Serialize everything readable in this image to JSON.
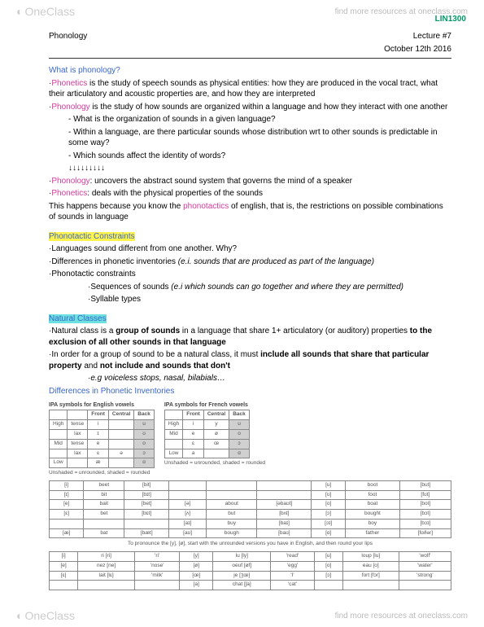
{
  "watermark": {
    "logo": "OneClass",
    "tagline": "find more resources at oneclass.com"
  },
  "header": {
    "course": "LIN1300",
    "left": "Phonology",
    "right1": "Lecture #7",
    "right2": "October 12th 2016"
  },
  "s1": {
    "title": "What is phonology?",
    "p1a": "Phonetics",
    "p1b": " is the study of speech sounds as physical entities: how they are produced in the vocal tract, what their articulatory and acoustic properties are, and how they are interpreted",
    "p2a": "Phonology",
    "p2b": " is the study of how sounds are organized within a language and how they interact with one another",
    "b1": "What is the organization of sounds in a given language?",
    "b2": "Within a language, are there particular sounds whose distribution wrt to other sounds is predictable in some way?",
    "b3": "Which sounds affect the identity of words?",
    "arrows": "↓↓↓↓↓↓↓↓↓",
    "p3a": "Phonology",
    "p3b": ": uncovers the abstract sound system that governs the mind of a speaker",
    "p4a": "Phonetics",
    "p4b": ": deals with the physical properties of the sounds",
    "p5a": "This happens because you know the ",
    "p5b": "phonotactics",
    "p5c": " of english, that is, the restrictions on possible combinations of sounds in language"
  },
  "s2": {
    "title": "Phonotactic Constraints",
    "p1": "·Languages sound different from one another. Why?",
    "p2a": "·Differences in phonetic inventories ",
    "p2b": "(e.i. sounds that are produced as part of the language)",
    "p3": "·Phonotactic constraints",
    "p4a": "·Sequences of sounds ",
    "p4b": "(e.i which sounds can go together and where they are permitted)",
    "p5": "·Syllable types"
  },
  "s3": {
    "title": "Natural Classes",
    "p1a": "·Natural class is a ",
    "p1b": "group of sounds",
    "p1c": " in a language that share 1+ articulatory (or auditory) properties ",
    "p1d": "to the exclusion of all other sounds in that language",
    "p2a": "·In order for a group of sound to be a natural class, it must ",
    "p2b": "include all sounds that share that particular property",
    "p2c": " and ",
    "p2d": "not include and sounds that don't",
    "p3": "·e.g voiceless stops, nasal, bilabials…"
  },
  "s4": {
    "title": "Differences in Phonetic Inventories",
    "tbl1_title": "IPA symbols for English vowels",
    "tbl2_title": "IPA symbols for French vowels",
    "caption": "Unshaded = unrounded, shaded = rounded",
    "eng_cols": [
      "",
      "",
      "Front",
      "Central",
      "Back"
    ],
    "eng_rows": [
      [
        "High",
        "tense",
        "i",
        "",
        "u"
      ],
      [
        "",
        "lax",
        "ɪ",
        "",
        "ʊ"
      ],
      [
        "Mid",
        "tense",
        "e",
        "",
        "o"
      ],
      [
        "",
        "lax",
        "ɛ",
        "ə",
        "ɔ"
      ],
      [
        "Low",
        "",
        "æ",
        "",
        "ɑ"
      ]
    ],
    "fr_cols": [
      "",
      "Front",
      "Central",
      "Back"
    ],
    "fr_rows": [
      [
        "High",
        "i",
        "y",
        "u"
      ],
      [
        "Mid",
        "e",
        "ø",
        "o"
      ],
      [
        "",
        "ɛ",
        "œ",
        "ɔ"
      ],
      [
        "Low",
        "a",
        "",
        "ɑ"
      ]
    ],
    "ex_rows": [
      [
        "[i]",
        "beet",
        "[bit]",
        "",
        "",
        "",
        "[u]",
        "boot",
        "[but]"
      ],
      [
        "[ɪ]",
        "bit",
        "[bɪt]",
        "",
        "",
        "",
        "[ʊ]",
        "foot",
        "[fʊt]"
      ],
      [
        "[e]",
        "bait",
        "[bet]",
        "[ə]",
        "about",
        "[əbaʊt]",
        "[o]",
        "boat",
        "[bot]"
      ],
      [
        "[ɛ]",
        "bet",
        "[bɛt]",
        "[ʌ]",
        "but",
        "[bʌt]",
        "[ɔ]",
        "bought",
        "[bɔt]"
      ],
      [
        "",
        "",
        "",
        "[aɪ]",
        "buy",
        "[baɪ]",
        "[ɔɪ]",
        "boy",
        "[bɔɪ]"
      ],
      [
        "[æ]",
        "bat",
        "[bæt]",
        "[aʊ]",
        "bough",
        "[baʊ]",
        "[ɑ]",
        "father",
        "[fɑðər]"
      ]
    ],
    "pron_note": "To pronounce the [y], [ø], start with the unrounded versions you have in English, and then round your lips",
    "fr_ex_rows": [
      [
        "[i]",
        "ri [ri]",
        "'ri'",
        "[y]",
        "lu [ly]",
        "'read'",
        "[u]",
        "loup [lu]",
        "'wolf'"
      ],
      [
        "[e]",
        "nez [ne]",
        "'nose'",
        "[ø]",
        "oeuf [øf]",
        "'egg'",
        "[o]",
        "eau [o]",
        "'water'"
      ],
      [
        "[ɛ]",
        "lait [lɛ]",
        "'milk'",
        "[œ]",
        "je [ʒœ]",
        "'I'",
        "[ɔ]",
        "fort [fɔr]",
        "'strong'"
      ],
      [
        "",
        "",
        "",
        "[a]",
        "chat [ʃa]",
        "'cat'",
        "",
        "",
        ""
      ]
    ]
  }
}
